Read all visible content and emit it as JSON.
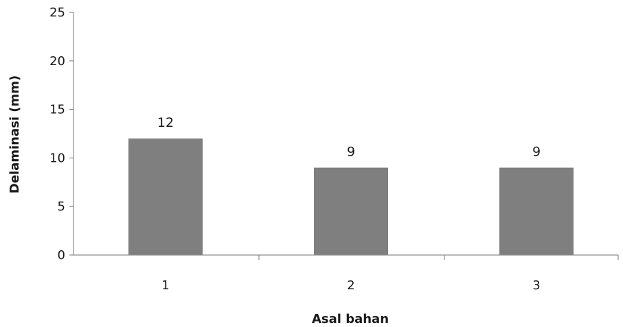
{
  "chart_data": {
    "type": "bar",
    "title": "",
    "xlabel": "Asal bahan",
    "ylabel": "Delaminasi (mm)",
    "categories": [
      "1",
      "2",
      "3"
    ],
    "values": [
      12,
      9,
      9
    ],
    "data_labels": [
      "12",
      "9",
      "9"
    ],
    "ylim": [
      0,
      25
    ],
    "yticks": [
      0,
      5,
      10,
      15,
      20,
      25
    ],
    "grid": false,
    "legend": "none",
    "bar_color": "#7f7f7f",
    "axis_color": "#8c8c8c"
  }
}
